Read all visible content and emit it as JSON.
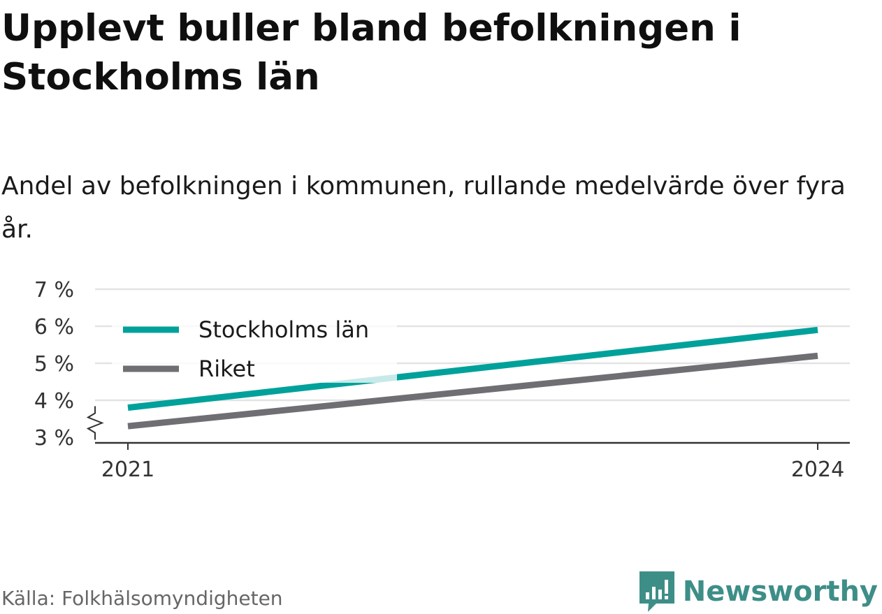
{
  "title": "Upplevt buller bland befolkningen i Stockholms län",
  "subtitle": "Andel av befolkningen i kommunen, rullande medelvärde över fyra år.",
  "source": "Källa: Folkhälsomyndigheten",
  "brand": "Newsworthy",
  "colors": {
    "stockholm": "#00a19a",
    "riket": "#6e6e73",
    "grid": "#e3e3e3",
    "axis": "#333333",
    "brand": "#3e8e88"
  },
  "chart_data": {
    "type": "line",
    "x": [
      2021,
      2024
    ],
    "x_tick_labels": [
      "2021",
      "2024"
    ],
    "ylim": [
      3,
      7
    ],
    "y_ticks": [
      3,
      4,
      5,
      6,
      7
    ],
    "y_tick_labels": [
      "3 %",
      "4 %",
      "5 %",
      "6 %",
      "7 %"
    ],
    "y_axis_break": true,
    "grid": true,
    "legend": "top-left",
    "series": [
      {
        "name": "Stockholms län",
        "color": "#00a19a",
        "values": [
          3.8,
          5.9
        ]
      },
      {
        "name": "Riket",
        "color": "#6e6e73",
        "values": [
          3.3,
          5.2
        ]
      }
    ]
  }
}
